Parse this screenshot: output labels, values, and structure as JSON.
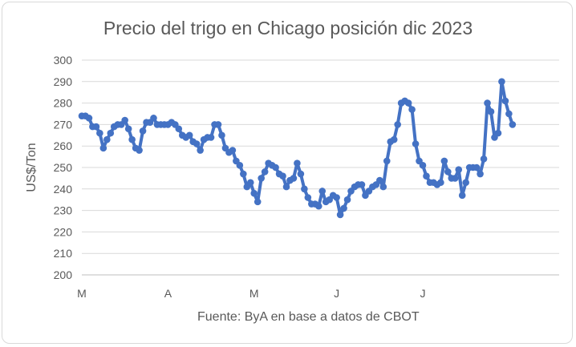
{
  "chart_data": {
    "type": "line",
    "title": "Precio del trigo en Chicago posición dic 2023",
    "ylabel": "US$/Ton",
    "source_note": "Fuente: ByA en base a datos de CBOT",
    "ylim": [
      200,
      300
    ],
    "yticks": [
      200,
      210,
      220,
      230,
      240,
      250,
      260,
      270,
      280,
      290,
      300
    ],
    "xlim": [
      0,
      133
    ],
    "xticks": [
      {
        "label": "M",
        "x": 0
      },
      {
        "label": "A",
        "x": 24
      },
      {
        "label": "M",
        "x": 48
      },
      {
        "label": "J",
        "x": 71
      },
      {
        "label": "J",
        "x": 95
      }
    ],
    "grid": true,
    "legend": "none",
    "line_color": "#4472c4",
    "series": [
      {
        "values": [
          274,
          274,
          273,
          269,
          269,
          266,
          259,
          263,
          266,
          269,
          270,
          270,
          272,
          268,
          263,
          259,
          258,
          267,
          271,
          271,
          273,
          270,
          270,
          270,
          270,
          271,
          270,
          268,
          265,
          264,
          265,
          262,
          261,
          258,
          263,
          264,
          264,
          270,
          270,
          265,
          259,
          257,
          258,
          253,
          251,
          247,
          241,
          243,
          238,
          234,
          245,
          248,
          252,
          251,
          250,
          247,
          246,
          241,
          244,
          245,
          252,
          247,
          240,
          236,
          233,
          233,
          232,
          239,
          234,
          235,
          237,
          236,
          228,
          231,
          235,
          239,
          241,
          242,
          242,
          237,
          239,
          241,
          242,
          244,
          241,
          253,
          262,
          263,
          270,
          280,
          281,
          280,
          277,
          261,
          253,
          251,
          246,
          243,
          243,
          242,
          243,
          253,
          248,
          245,
          245,
          249,
          237,
          243,
          250,
          250,
          250,
          247,
          254,
          280,
          276,
          264,
          266,
          290,
          281,
          275,
          270
        ]
      }
    ]
  }
}
